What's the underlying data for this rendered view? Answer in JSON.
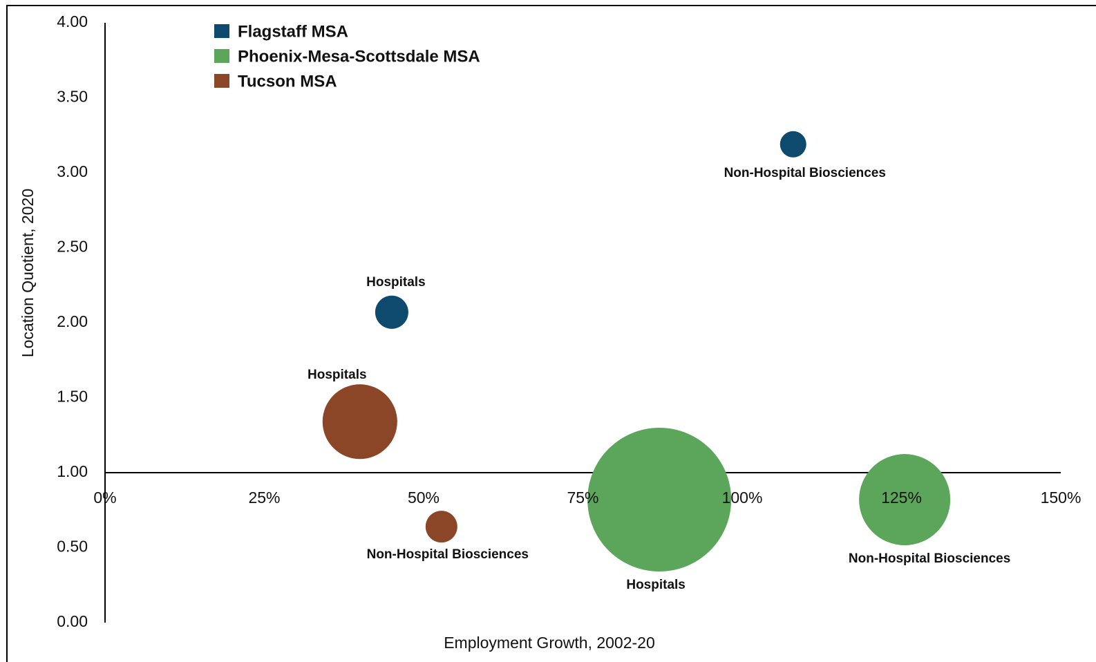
{
  "chart_data": {
    "type": "bubble",
    "xlabel": "Employment Growth, 2002-20",
    "ylabel": "Location Quotient, 2020",
    "xlim": [
      0,
      150
    ],
    "xticks": [
      {
        "value": 0,
        "label": "0%"
      },
      {
        "value": 25,
        "label": "25%"
      },
      {
        "value": 50,
        "label": "50%"
      },
      {
        "value": 75,
        "label": "75%"
      },
      {
        "value": 100,
        "label": "100%"
      },
      {
        "value": 125,
        "label": "125%"
      },
      {
        "value": 150,
        "label": "150%"
      }
    ],
    "ylim": [
      0,
      4
    ],
    "yticks": [
      {
        "value": 0,
        "label": "0.00"
      },
      {
        "value": 0.5,
        "label": "0.50"
      },
      {
        "value": 1,
        "label": "1.00"
      },
      {
        "value": 1.5,
        "label": "1.50"
      },
      {
        "value": 2,
        "label": "2.00"
      },
      {
        "value": 2.5,
        "label": "2.50"
      },
      {
        "value": 3,
        "label": "3.00"
      },
      {
        "value": 3.5,
        "label": "3.50"
      },
      {
        "value": 4,
        "label": "4.00"
      }
    ],
    "x_axis_crosses_at": 1,
    "grid": false,
    "legend": "upper left",
    "series": [
      {
        "name": "Flagstaff MSA",
        "color": "#0e4a6e",
        "x": [
          45,
          108
        ],
        "values": [
          2.07,
          3.19
        ],
        "size": [
          3730,
          2340
        ],
        "labels": [
          "Hospitals",
          "Non-Hospital Biosciences"
        ]
      },
      {
        "name": "Phoenix-Mesa-Scottsdale MSA",
        "color": "#5ba65a",
        "x": [
          87,
          125.5
        ],
        "values": [
          0.82,
          0.82
        ],
        "size": [
          70000,
          28200
        ],
        "labels": [
          "Hospitals",
          "Non-Hospital Biosciences"
        ]
      },
      {
        "name": "Tucson MSA",
        "color": "#8b4527",
        "x": [
          40,
          52.8
        ],
        "values": [
          1.34,
          0.64
        ],
        "size": [
          18900,
          3420
        ],
        "labels": [
          "Hospitals",
          "Non-Hospital Biosciences"
        ]
      }
    ]
  }
}
